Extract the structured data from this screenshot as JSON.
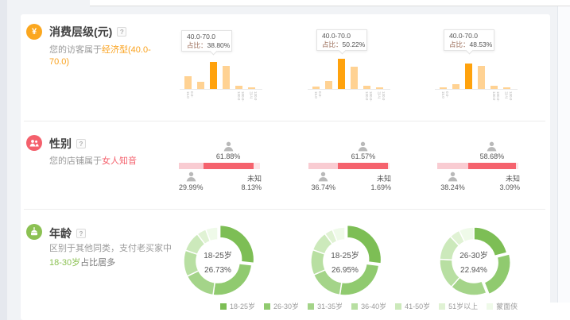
{
  "consumption": {
    "title": "消费层级(元)",
    "help": "?",
    "desc_prefix": "您的访客属于",
    "desc_highlight": "经济型(40.0-70.0)",
    "tooltip_label": "占比：",
    "axis_labels": [
      "0.0-15.0",
      "15.0-40.0",
      "40.0-70.0",
      "70.0-100.0",
      "100.0-130.0",
      "130.0以上"
    ],
    "colors": {
      "highlight": "#ffa20d",
      "normal": "#ffd293",
      "accent": "#faa21e"
    },
    "chart_data": [
      {
        "type": "bar",
        "categories": [
          "0.0-15.0",
          "15.0-40.0",
          "40.0-70.0",
          "70.0-100.0",
          "100.0-130.0",
          "130.0以上"
        ],
        "values": [
          18.3,
          10.3,
          38.8,
          33.1,
          4.6,
          2.3
        ],
        "highlight_index": 2,
        "tooltip_range": "40.0-70.0",
        "tooltip_value": "38.80%"
      },
      {
        "type": "bar",
        "categories": [
          "0.0-15.0",
          "15.0-40.0",
          "40.0-70.0",
          "70.0-100.0",
          "100.0-130.0",
          "130.0以上"
        ],
        "values": [
          4.0,
          13.2,
          50.22,
          37.0,
          5.3,
          2.6
        ],
        "highlight_index": 2,
        "tooltip_range": "40.0-70.0",
        "tooltip_value": "50.22%"
      },
      {
        "type": "bar",
        "categories": [
          "0.0-15.0",
          "15.0-40.0",
          "40.0-70.0",
          "70.0-100.0",
          "100.0-130.0",
          "130.0以上"
        ],
        "values": [
          3.0,
          9.1,
          48.53,
          44.0,
          6.1,
          3.0
        ],
        "highlight_index": 2,
        "tooltip_range": "40.0-70.0",
        "tooltip_value": "48.53%"
      }
    ]
  },
  "gender": {
    "title": "性别",
    "help": "?",
    "desc_prefix": "您的店铺属于",
    "desc_highlight": "女人知音",
    "unknown_label": "未知",
    "colors": {
      "male": "#f9ccd2",
      "female": "#f5626d",
      "unknown": "#fce4e7",
      "accent": "#f4606c"
    },
    "chart_data": [
      {
        "type": "bar",
        "male": 29.99,
        "female": 61.88,
        "unknown": 8.13,
        "male_label": "29.99%",
        "female_label": "61.88%",
        "unknown_value": "8.13%"
      },
      {
        "type": "bar",
        "male": 36.74,
        "female": 61.57,
        "unknown": 1.69,
        "male_label": "36.74%",
        "female_label": "61.57%",
        "unknown_value": "1.69%"
      },
      {
        "type": "bar",
        "male": 38.24,
        "female": 58.68,
        "unknown": 3.09,
        "male_label": "38.24%",
        "female_label": "58.68%",
        "unknown_value": "3.09%"
      }
    ]
  },
  "age": {
    "title": "年龄",
    "help": "?",
    "desc_line1": "区别于其他同类，支付老买家中",
    "desc_highlight": "18-30岁",
    "desc_suffix": "占比居多",
    "accent": "#8cc153",
    "chart_data": [
      {
        "type": "pie",
        "center_label": "18-25岁",
        "center_value": "26.73%",
        "highlight_index": 0,
        "values": [
          26.73,
          25.5,
          15.5,
          12.5,
          9.5,
          4.5,
          5.77
        ]
      },
      {
        "type": "pie",
        "center_label": "18-25岁",
        "center_value": "26.95%",
        "highlight_index": 0,
        "values": [
          26.95,
          25.5,
          16.0,
          12.0,
          9.5,
          4.0,
          6.05
        ]
      },
      {
        "type": "pie",
        "center_label": "26-30岁",
        "center_value": "22.94%",
        "highlight_index": 1,
        "values": [
          21.0,
          22.94,
          17.5,
          14.5,
          12.0,
          5.0,
          7.06
        ]
      }
    ],
    "legend": [
      {
        "label": "18-25岁",
        "color": "#7dbe55"
      },
      {
        "label": "26-30岁",
        "color": "#90ca6f"
      },
      {
        "label": "31-35岁",
        "color": "#a4d489"
      },
      {
        "label": "36-40岁",
        "color": "#b8dfa2"
      },
      {
        "label": "41-50岁",
        "color": "#cce9bb"
      },
      {
        "label": "51岁以上",
        "color": "#e0f2d4"
      },
      {
        "label": "蒙面侠",
        "color": "#effae9"
      }
    ]
  }
}
